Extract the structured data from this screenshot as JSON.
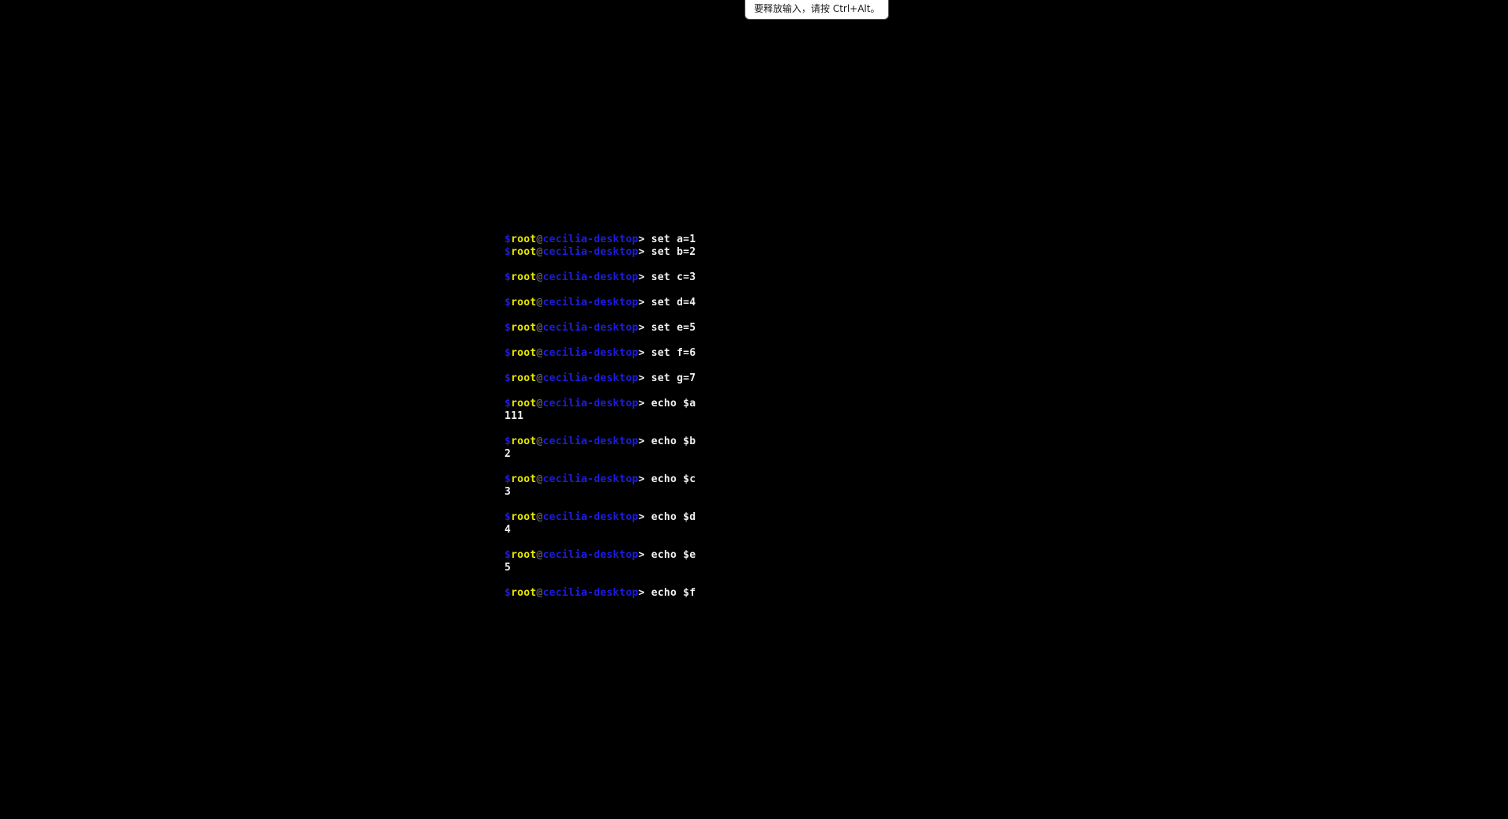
{
  "tooltip": {
    "text": "要释放输入，请按 Ctrl+Alt。"
  },
  "terminal": {
    "colors": {
      "background": "#000000",
      "blue": "#1c1ce0",
      "yellow": "#e8e800",
      "gray": "#5a5a5a",
      "white": "#f0f0f0"
    },
    "prompt": {
      "dollar": "$",
      "user": "root",
      "at": "@",
      "host": "cecilia-desktop",
      "arrow": ">"
    },
    "lines": [
      {
        "type": "command",
        "command": "set a=1"
      },
      {
        "type": "command",
        "command": "set b=2"
      },
      {
        "type": "blank"
      },
      {
        "type": "command",
        "command": "set c=3"
      },
      {
        "type": "blank"
      },
      {
        "type": "command",
        "command": "set d=4"
      },
      {
        "type": "blank"
      },
      {
        "type": "command",
        "command": "set e=5"
      },
      {
        "type": "blank"
      },
      {
        "type": "command",
        "command": "set f=6"
      },
      {
        "type": "blank"
      },
      {
        "type": "command",
        "command": "set g=7"
      },
      {
        "type": "blank"
      },
      {
        "type": "command",
        "command": "echo $a"
      },
      {
        "type": "output",
        "text": "111"
      },
      {
        "type": "blank"
      },
      {
        "type": "command",
        "command": "echo $b"
      },
      {
        "type": "output",
        "text": "2"
      },
      {
        "type": "blank"
      },
      {
        "type": "command",
        "command": "echo $c"
      },
      {
        "type": "output",
        "text": "3"
      },
      {
        "type": "blank"
      },
      {
        "type": "command",
        "command": "echo $d"
      },
      {
        "type": "output",
        "text": "4"
      },
      {
        "type": "blank"
      },
      {
        "type": "command",
        "command": "echo $e"
      },
      {
        "type": "output",
        "text": "5"
      },
      {
        "type": "blank"
      },
      {
        "type": "command",
        "command": "echo $f"
      }
    ]
  }
}
